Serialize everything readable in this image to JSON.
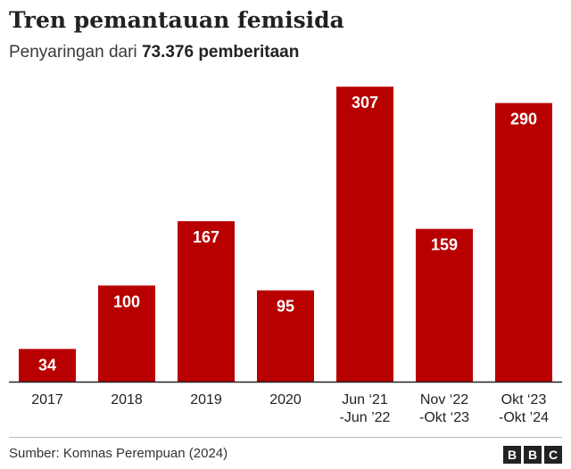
{
  "header": {
    "title": "Tren pemantauan femisida",
    "subtitle_prefix": "Penyaringan dari ",
    "subtitle_bold": "73.376 pemberitaan"
  },
  "chart_data": {
    "type": "bar",
    "title": "Tren pemantauan femisida",
    "subtitle": "Penyaringan dari 73.376 pemberitaan",
    "categories": [
      [
        "2017"
      ],
      [
        "2018"
      ],
      [
        "2019"
      ],
      [
        "2020"
      ],
      [
        "Jun ‘21",
        "-Jun ’22"
      ],
      [
        "Nov ‘22",
        "-Okt ‘23"
      ],
      [
        "Okt ‘23",
        "-Okt ’24"
      ]
    ],
    "values": [
      34,
      100,
      167,
      95,
      307,
      159,
      290
    ],
    "ylim": [
      0,
      310
    ],
    "grid": false,
    "bar_color": "#b80000",
    "label_color": "#ffffff",
    "axis_color": "#222222"
  },
  "footer": {
    "source": "Sumber: Komnas Perempuan (2024)",
    "logo_letters": [
      "B",
      "B",
      "C"
    ]
  }
}
